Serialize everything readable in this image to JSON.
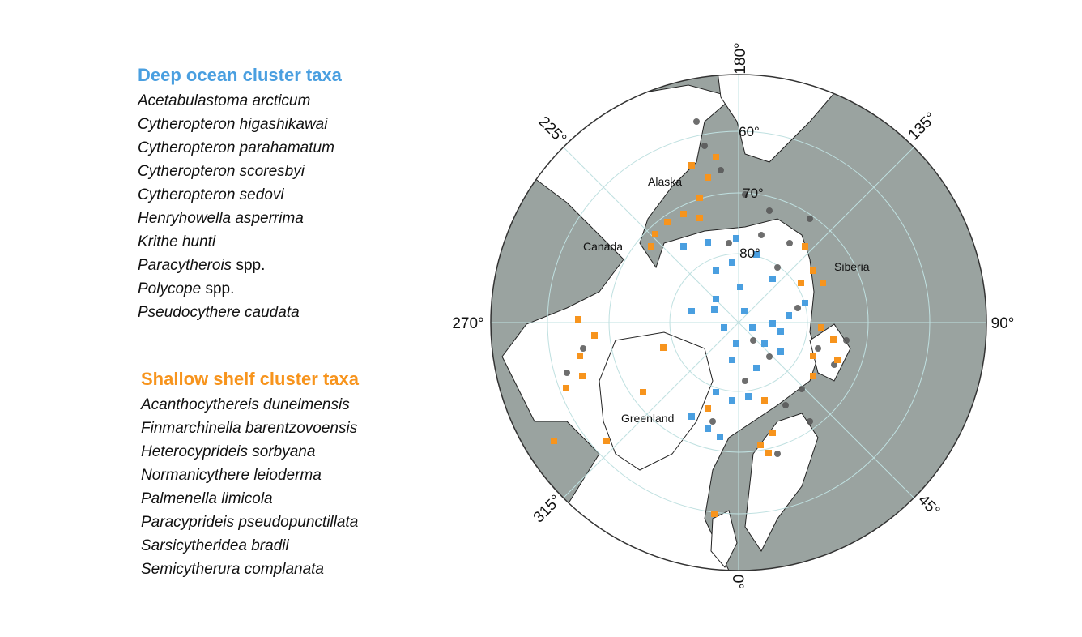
{
  "legend": {
    "deep": {
      "title": "Deep ocean cluster taxa",
      "items": [
        {
          "italic": "Acetabulastoma arcticum"
        },
        {
          "italic": "Cytheropteron higashikawai"
        },
        {
          "italic": "Cytheropteron parahamatum"
        },
        {
          "italic": "Cytheropteron scoresbyi"
        },
        {
          "italic": "Cytheropteron sedovi"
        },
        {
          "italic": "Henryhowella asperrima"
        },
        {
          "italic": "Krithe hunti"
        },
        {
          "italic": "Paracytherois",
          "plain": "spp."
        },
        {
          "italic": "Polycope",
          "plain": "spp."
        },
        {
          "italic": "Pseudocythere caudata"
        }
      ]
    },
    "shallow": {
      "title": "Shallow shelf cluster taxa",
      "items": [
        {
          "italic": "Acanthocythereis dunelmensis"
        },
        {
          "italic": "Finmarchinella barentzovoensis"
        },
        {
          "italic": "Heterocyprideis sorbyana"
        },
        {
          "italic": "Normanicythere leioderma"
        },
        {
          "italic": "Palmenella limicola"
        },
        {
          "italic": "Paracyprideis pseudopunctillata"
        },
        {
          "italic": "Sarsicytheridea bradii"
        },
        {
          "italic": "Semicytherura complanata"
        }
      ]
    }
  },
  "map": {
    "longitude_labels": [
      "180°",
      "225°",
      "135°",
      "270°",
      "90°",
      "315°",
      "45°",
      "0°"
    ],
    "latitude_labels": [
      "60°",
      "70°",
      "80°"
    ],
    "place_labels": [
      "Alaska",
      "Canada",
      "Siberia",
      "Greenland"
    ]
  }
}
